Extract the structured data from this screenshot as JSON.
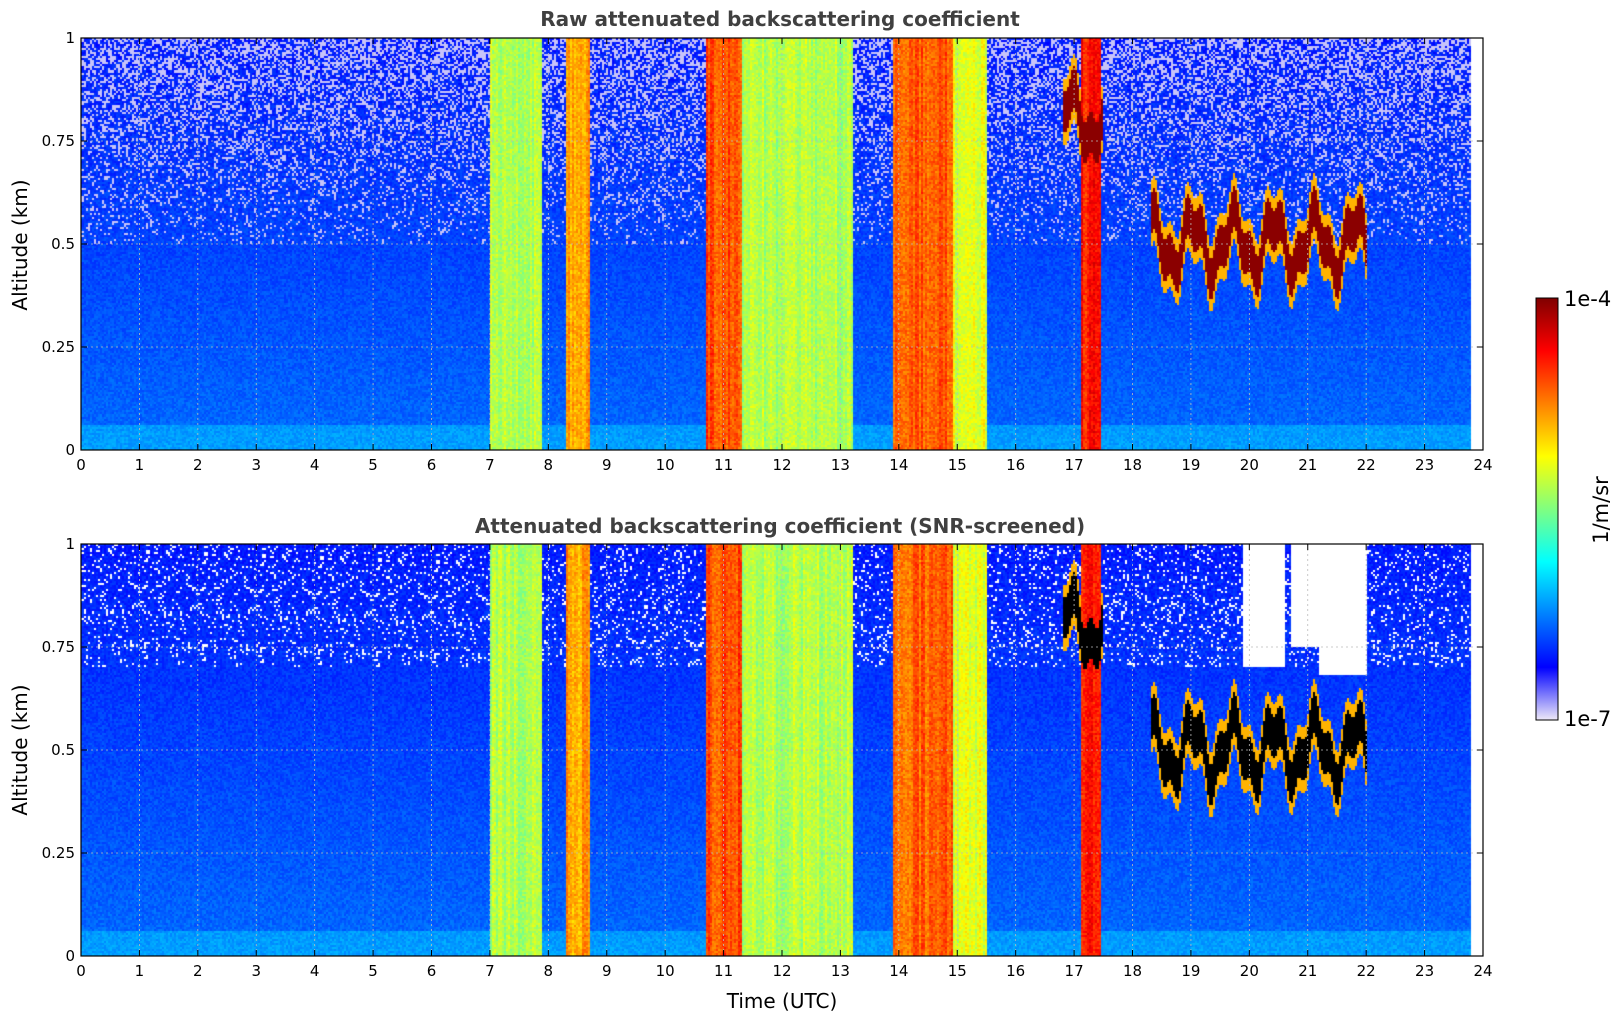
{
  "chart_data": [
    {
      "type": "heatmap",
      "title": "Raw attenuated backscattering coefficient",
      "xlabel": "",
      "ylabel": "Altitude (km)",
      "xlim": [
        0,
        24
      ],
      "ylim": [
        0,
        1
      ],
      "x_ticks": [
        "0",
        "1",
        "2",
        "3",
        "4",
        "5",
        "6",
        "7",
        "8",
        "9",
        "10",
        "11",
        "12",
        "13",
        "14",
        "15",
        "16",
        "17",
        "18",
        "19",
        "20",
        "21",
        "22",
        "23",
        "24"
      ],
      "y_ticks": [
        "0",
        "0.25",
        "0.5",
        "0.75",
        "1"
      ],
      "data_end_time": 23.8,
      "grid": true,
      "high_values_color": "#8b0000",
      "features": [
        {
          "label": "precipitation-column",
          "t_start": 7.0,
          "t_end": 7.9,
          "level": 0.55
        },
        {
          "label": "precipitation-column",
          "t_start": 8.3,
          "t_end": 8.7,
          "level": 0.72
        },
        {
          "label": "precipitation-column",
          "t_start": 10.7,
          "t_end": 11.3,
          "level": 0.8
        },
        {
          "label": "precipitation-column",
          "t_start": 11.3,
          "t_end": 13.2,
          "level": 0.55
        },
        {
          "label": "precipitation-column",
          "t_start": 13.9,
          "t_end": 14.9,
          "level": 0.78
        },
        {
          "label": "precipitation-column",
          "t_start": 14.9,
          "t_end": 15.5,
          "level": 0.6
        },
        {
          "label": "precipitation-column",
          "t_start": 17.1,
          "t_end": 17.45,
          "level": 0.85
        },
        {
          "label": "cloud-layer",
          "t_start": 16.8,
          "t_end": 17.5,
          "alt_center": 0.8,
          "level": 1.0
        },
        {
          "label": "cloud-layer",
          "t_start": 18.3,
          "t_end": 22.0,
          "alt_center": 0.5,
          "level": 1.0
        }
      ]
    },
    {
      "type": "heatmap",
      "title": "Attenuated backscattering coefficient (SNR-screened)",
      "xlabel": "Time (UTC)",
      "ylabel": "Altitude (km)",
      "xlim": [
        0,
        24
      ],
      "ylim": [
        0,
        1
      ],
      "x_ticks": [
        "0",
        "1",
        "2",
        "3",
        "4",
        "5",
        "6",
        "7",
        "8",
        "9",
        "10",
        "11",
        "12",
        "13",
        "14",
        "15",
        "16",
        "17",
        "18",
        "19",
        "20",
        "21",
        "22",
        "23",
        "24"
      ],
      "y_ticks": [
        "0",
        "0.25",
        "0.5",
        "0.75",
        "1"
      ],
      "data_end_time": 23.8,
      "grid": true,
      "high_values_color": "#000000",
      "screened_regions": [
        {
          "t_start": 19.9,
          "t_end": 20.6,
          "alt_min": 0.7
        },
        {
          "t_start": 20.7,
          "t_end": 21.2,
          "alt_min": 0.75
        },
        {
          "t_start": 21.2,
          "t_end": 22.0,
          "alt_min": 0.68
        }
      ]
    }
  ],
  "colorbar": {
    "label": "1/m/sr",
    "max_label": "1e-4",
    "min_label": "1e-7",
    "scale": "log",
    "range": [
      1e-07,
      0.0001
    ],
    "colormap": "jet",
    "colors": [
      "#ede8f8",
      "#0000ff",
      "#0080ff",
      "#00ffff",
      "#80ff80",
      "#ffff00",
      "#ff8000",
      "#ff0000",
      "#800000"
    ]
  }
}
